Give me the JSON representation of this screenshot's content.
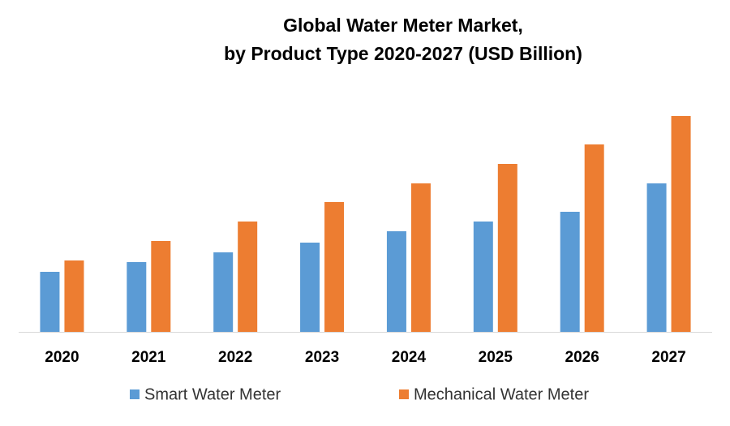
{
  "chart_data": {
    "type": "bar",
    "title": "Global Water Meter Market,",
    "subtitle": "by Product Type 2020-2027 (USD Billion)",
    "categories": [
      "2020",
      "2021",
      "2022",
      "2023",
      "2024",
      "2025",
      "2026",
      "2027"
    ],
    "series": [
      {
        "name": "Smart Water Meter",
        "color": "#5b9bd5",
        "values": [
          1.48,
          1.72,
          1.96,
          2.2,
          2.48,
          2.72,
          2.96,
          3.66
        ]
      },
      {
        "name": "Mechanical Water Meter",
        "color": "#ed7d31",
        "values": [
          1.76,
          2.24,
          2.72,
          3.2,
          3.66,
          4.14,
          4.62,
          5.32
        ]
      }
    ],
    "legend": "bottom"
  }
}
